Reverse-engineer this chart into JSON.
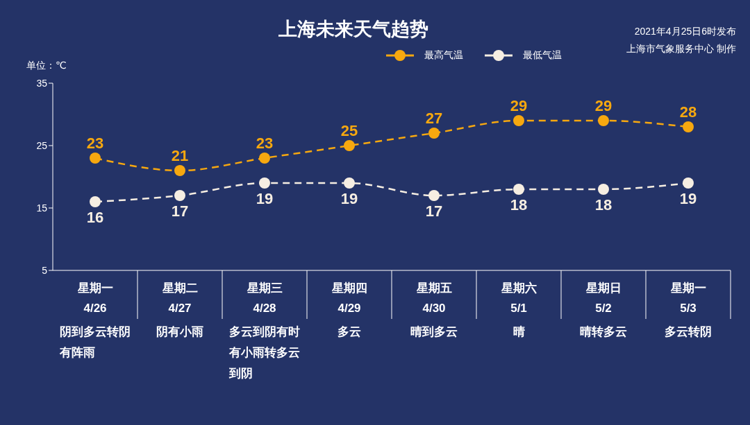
{
  "chart_data": {
    "type": "line",
    "title": "上海未来天气趋势",
    "ylabel": "单位：℃",
    "annotations": [
      "2021年4月25日6时发布",
      "上海市气象服务中心 制作"
    ],
    "categories": [
      "星期一\n4/26\n阴到多云转阴有阵雨",
      "星期二\n4/27\n阴有小雨",
      "星期三\n4/28\n多云到阴有时有小雨转多云到阴",
      "星期四\n4/29\n多云",
      "星期五\n4/30\n晴到多云",
      "星期六\n5/1\n晴",
      "星期日\n5/2\n晴转多云",
      "星期一\n5/3\n多云转阴"
    ],
    "series": [
      {
        "name": "最高气温",
        "color": "#f7a80f",
        "values": [
          23,
          21,
          23,
          25,
          27,
          29,
          29,
          28
        ]
      },
      {
        "name": "最低气温",
        "color": "#f6eee2",
        "values": [
          16,
          17,
          19,
          19,
          17,
          18,
          18,
          19
        ]
      }
    ],
    "ylim": [
      5,
      35
    ],
    "yticks": [
      5,
      15,
      25,
      35
    ],
    "grid": false,
    "legend": "top",
    "marker": "circle",
    "line_style": "dashed",
    "data_labels": true
  }
}
